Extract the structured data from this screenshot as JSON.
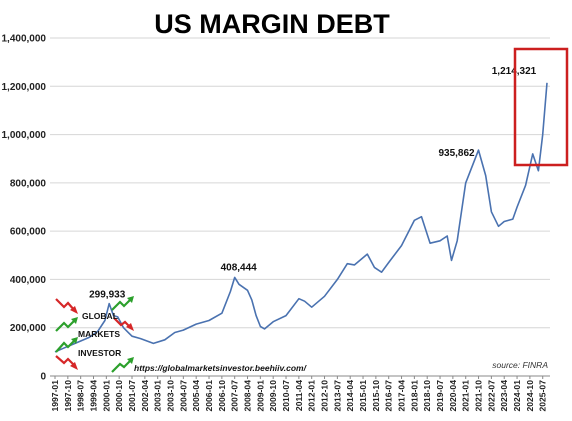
{
  "chart_data": {
    "type": "line",
    "title": "US MARGIN DEBT",
    "xlabel": "",
    "ylabel": "",
    "ylim": [
      0,
      1400000
    ],
    "yticks": [
      "0",
      "200,000",
      "400,000",
      "600,000",
      "800,000",
      "1,000,000",
      "1,200,000",
      "1,400,000"
    ],
    "xticks": [
      "1997-01",
      "1997-10",
      "1998-07",
      "1999-04",
      "2000-01",
      "2000-10",
      "2001-07",
      "2002-04",
      "2003-01",
      "2003-10",
      "2004-07",
      "2005-04",
      "2006-01",
      "2006-10",
      "2007-07",
      "2008-04",
      "2009-01",
      "2009-10",
      "2010-07",
      "2011-04",
      "2012-01",
      "2012-10",
      "2013-07",
      "2014-04",
      "2015-01",
      "2015-10",
      "2016-07",
      "2017-04",
      "2018-01",
      "2018-10",
      "2019-07",
      "2020-04",
      "2021-01",
      "2021-10",
      "2022-07",
      "2023-04",
      "2024-01",
      "2024-10",
      "2025-07"
    ],
    "grid": true,
    "series": [
      {
        "color": "#4a72b0",
        "points": [
          [
            "1997-01",
            100000
          ],
          [
            "1997-07",
            115000
          ],
          [
            "1998-01",
            130000
          ],
          [
            "1998-07",
            145000
          ],
          [
            "1999-01",
            160000
          ],
          [
            "1999-07",
            185000
          ],
          [
            "1999-12",
            230000
          ],
          [
            "2000-03",
            299933
          ],
          [
            "2000-06",
            250000
          ],
          [
            "2000-09",
            245000
          ],
          [
            "2001-01",
            200000
          ],
          [
            "2001-07",
            165000
          ],
          [
            "2002-01",
            155000
          ],
          [
            "2002-10",
            135000
          ],
          [
            "2003-06",
            150000
          ],
          [
            "2004-01",
            180000
          ],
          [
            "2004-07",
            190000
          ],
          [
            "2005-04",
            215000
          ],
          [
            "2006-01",
            230000
          ],
          [
            "2006-10",
            260000
          ],
          [
            "2007-04",
            350000
          ],
          [
            "2007-07",
            408444
          ],
          [
            "2007-10",
            380000
          ],
          [
            "2008-04",
            355000
          ],
          [
            "2008-07",
            315000
          ],
          [
            "2008-10",
            250000
          ],
          [
            "2009-01",
            205000
          ],
          [
            "2009-04",
            195000
          ],
          [
            "2009-10",
            225000
          ],
          [
            "2010-07",
            250000
          ],
          [
            "2011-04",
            320000
          ],
          [
            "2011-08",
            310000
          ],
          [
            "2012-01",
            285000
          ],
          [
            "2012-10",
            330000
          ],
          [
            "2013-07",
            400000
          ],
          [
            "2014-02",
            465000
          ],
          [
            "2014-07",
            460000
          ],
          [
            "2015-04",
            505000
          ],
          [
            "2015-09",
            450000
          ],
          [
            "2016-02",
            430000
          ],
          [
            "2016-07",
            470000
          ],
          [
            "2017-04",
            540000
          ],
          [
            "2018-01",
            645000
          ],
          [
            "2018-06",
            660000
          ],
          [
            "2018-12",
            550000
          ],
          [
            "2019-07",
            560000
          ],
          [
            "2019-12",
            580000
          ],
          [
            "2020-03",
            479000
          ],
          [
            "2020-07",
            560000
          ],
          [
            "2021-01",
            800000
          ],
          [
            "2021-10",
            935862
          ],
          [
            "2022-03",
            830000
          ],
          [
            "2022-07",
            680000
          ],
          [
            "2022-12",
            620000
          ],
          [
            "2023-04",
            640000
          ],
          [
            "2023-10",
            650000
          ],
          [
            "2024-01",
            700000
          ],
          [
            "2024-07",
            790000
          ],
          [
            "2024-12",
            920000
          ],
          [
            "2025-04",
            850000
          ],
          [
            "2025-07",
            1000000
          ],
          [
            "2025-10",
            1214321
          ]
        ]
      }
    ],
    "annotations": [
      {
        "date": "2000-03",
        "label": "299,933"
      },
      {
        "date": "2007-07",
        "label": "408,444"
      },
      {
        "date": "2021-10",
        "label": "935,862"
      },
      {
        "date": "2025-10",
        "label": "1,214,321"
      }
    ],
    "highlight_color": "#cc1f1f"
  },
  "logo": {
    "line1": "GLOBAL",
    "line2": "MARKETS",
    "line3": "INVESTOR"
  },
  "url_text": "https://globalmarketsinvestor.beehiiv.com/",
  "source_text": "source: FINRA",
  "colors": {
    "line": "#4a72b0",
    "grid": "#d6d6d6",
    "highlight": "#cc1f1f",
    "arrow_up": "#2ca02c",
    "arrow_down": "#d62728"
  }
}
